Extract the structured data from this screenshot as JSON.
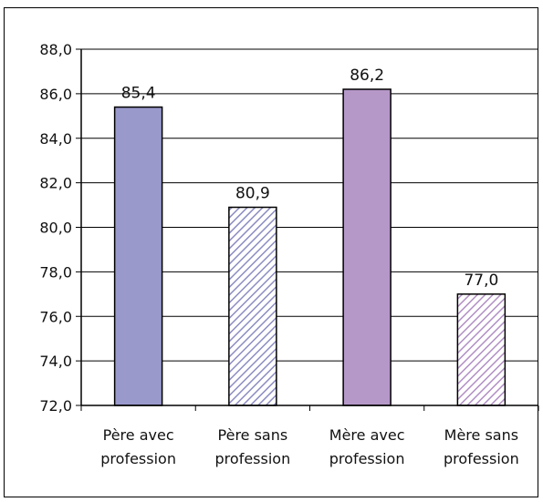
{
  "chart_data": {
    "type": "bar",
    "categories": [
      [
        "Père avec",
        "profession"
      ],
      [
        "Père sans",
        "profession"
      ],
      [
        "Mère avec",
        "profession"
      ],
      [
        "Mère sans",
        "profession"
      ]
    ],
    "values": [
      85.4,
      80.9,
      86.2,
      77.0
    ],
    "value_labels": [
      "85,4",
      "80,9",
      "86,2",
      "77,0"
    ],
    "ylim": [
      72.0,
      88.0
    ],
    "yticks": [
      72.0,
      74.0,
      76.0,
      78.0,
      80.0,
      82.0,
      84.0,
      86.0,
      88.0
    ],
    "ytick_labels": [
      "72,0",
      "74,0",
      "76,0",
      "78,0",
      "80,0",
      "82,0",
      "84,0",
      "86,0",
      "88,0"
    ],
    "grid": true,
    "legend": "none",
    "fills": [
      "solid",
      "hatched",
      "solid",
      "hatched"
    ],
    "colors": [
      "#9999cc",
      "#8c8cc2",
      "#b598c8",
      "#b08ec4"
    ]
  }
}
